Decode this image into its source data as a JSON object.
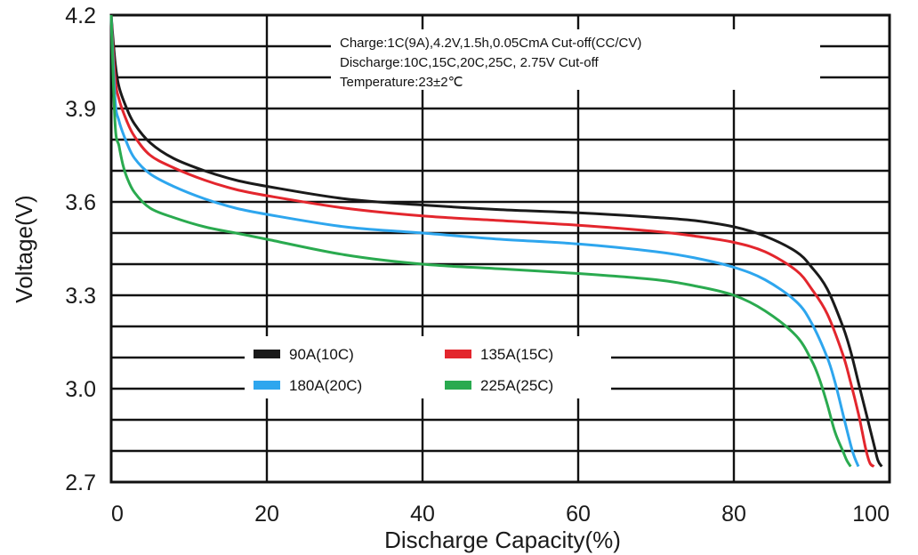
{
  "chart_data": {
    "type": "line",
    "xlabel": "Discharge Capacity(%)",
    "ylabel": "Voltage(V)",
    "xlim": [
      0,
      100
    ],
    "ylim": [
      2.7,
      4.2
    ],
    "x_ticks": [
      0,
      20,
      40,
      60,
      80,
      100
    ],
    "y_ticks": [
      2.7,
      3.0,
      3.3,
      3.6,
      3.9,
      4.2
    ],
    "x_tick_labels": [
      "0",
      "20",
      "40",
      "60",
      "80",
      "100"
    ],
    "y_tick_labels": [
      "2.7",
      "3.0",
      "3.3",
      "3.6",
      "3.9",
      "4.2"
    ],
    "grid": true,
    "annotations": [
      "Charge:1C(9A),4.2V,1.5h,0.05CmA Cut-off(CC/CV)",
      "Discharge:10C,15C,20C,25C, 2.75V Cut-off",
      "Temperature:23±2℃"
    ],
    "legend_placement": "lower-center",
    "series": [
      {
        "name": "90A(10C)",
        "color": "#1a1a1a",
        "x": [
          0,
          0.5,
          1,
          2,
          3,
          5,
          8,
          12,
          16,
          20,
          30,
          40,
          50,
          60,
          70,
          75,
          80,
          84,
          88,
          90,
          92,
          94,
          95,
          96,
          97,
          98,
          98.5,
          99
        ],
        "y": [
          4.2,
          4.05,
          3.97,
          3.9,
          3.85,
          3.79,
          3.74,
          3.7,
          3.67,
          3.65,
          3.61,
          3.59,
          3.575,
          3.565,
          3.55,
          3.54,
          3.52,
          3.49,
          3.44,
          3.39,
          3.32,
          3.2,
          3.12,
          3.02,
          2.92,
          2.82,
          2.77,
          2.75
        ]
      },
      {
        "name": "135A(15C)",
        "color": "#e3262d",
        "x": [
          0,
          0.5,
          1,
          2,
          3,
          5,
          8,
          12,
          16,
          20,
          30,
          40,
          50,
          60,
          70,
          75,
          80,
          84,
          88,
          90,
          92,
          94,
          95,
          96,
          96.5,
          97,
          97.5,
          98
        ],
        "y": [
          4.2,
          4.0,
          3.93,
          3.86,
          3.81,
          3.75,
          3.71,
          3.67,
          3.64,
          3.62,
          3.58,
          3.555,
          3.54,
          3.525,
          3.505,
          3.49,
          3.47,
          3.44,
          3.38,
          3.32,
          3.24,
          3.11,
          3.02,
          2.92,
          2.86,
          2.8,
          2.76,
          2.75
        ]
      },
      {
        "name": "180A(20C)",
        "color": "#2ea6ee",
        "x": [
          0,
          0.5,
          1,
          2,
          3,
          5,
          8,
          12,
          16,
          20,
          30,
          40,
          50,
          60,
          70,
          75,
          80,
          84,
          88,
          90,
          92,
          93,
          94,
          95,
          95.5,
          96
        ],
        "y": [
          4.2,
          3.93,
          3.86,
          3.79,
          3.74,
          3.69,
          3.65,
          3.61,
          3.58,
          3.56,
          3.52,
          3.5,
          3.48,
          3.465,
          3.44,
          3.42,
          3.39,
          3.35,
          3.28,
          3.21,
          3.1,
          3.02,
          2.92,
          2.82,
          2.78,
          2.75
        ]
      },
      {
        "name": "225A(25C)",
        "color": "#2aaa4f",
        "x": [
          0,
          0.5,
          1,
          1.5,
          2,
          3,
          5,
          8,
          12,
          16,
          20,
          30,
          40,
          50,
          60,
          70,
          75,
          80,
          84,
          88,
          90,
          91,
          92,
          93,
          94,
          94.5,
          95
        ],
        "y": [
          4.2,
          3.85,
          3.78,
          3.72,
          3.68,
          3.63,
          3.58,
          3.55,
          3.52,
          3.5,
          3.48,
          3.43,
          3.4,
          3.385,
          3.37,
          3.35,
          3.33,
          3.3,
          3.25,
          3.17,
          3.09,
          3.03,
          2.95,
          2.86,
          2.8,
          2.77,
          2.75
        ]
      }
    ]
  }
}
